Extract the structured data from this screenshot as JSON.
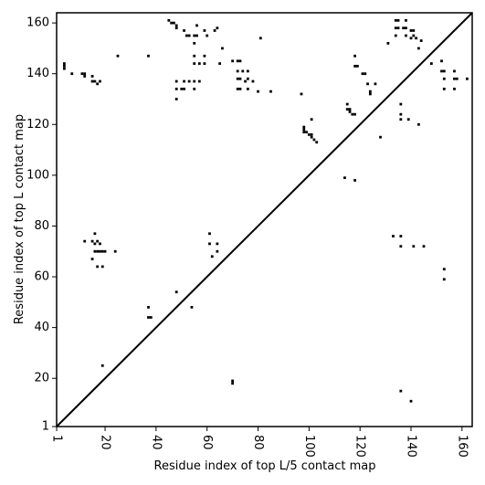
{
  "chart_data": {
    "type": "scatter",
    "title": "",
    "xlabel": "Residue index of top L/5 contact map",
    "ylabel": "Residue index of top L contact map",
    "xlim": [
      1,
      164
    ],
    "ylim": [
      1,
      164
    ],
    "x_ticks": [
      1,
      20,
      40,
      60,
      80,
      100,
      120,
      140,
      160
    ],
    "y_ticks": [
      1,
      20,
      40,
      60,
      80,
      100,
      120,
      140,
      160
    ],
    "x_tick_labels": [
      "1",
      "20",
      "40",
      "60",
      "80",
      "100",
      "120",
      "140",
      "160"
    ],
    "y_tick_labels": [
      "1",
      "20",
      "40",
      "60",
      "80",
      "100",
      "120",
      "140",
      "160"
    ],
    "grid": false,
    "legend": "none",
    "colors": {
      "marker": "#000000",
      "diagonal": "#000000",
      "frame": "#000000",
      "background": "#ffffff"
    },
    "diagonal": [
      [
        1,
        1
      ],
      [
        164,
        164
      ]
    ],
    "series": [
      {
        "values": [
          [
            4,
            142
          ],
          [
            4,
            143
          ],
          [
            4,
            144
          ],
          [
            7,
            140
          ],
          [
            11,
            140
          ],
          [
            12,
            140
          ],
          [
            12,
            139
          ],
          [
            15,
            139
          ],
          [
            15,
            137
          ],
          [
            16,
            137
          ],
          [
            17,
            136
          ],
          [
            18,
            137
          ],
          [
            25,
            147
          ],
          [
            37,
            147
          ],
          [
            45,
            161
          ],
          [
            46,
            160
          ],
          [
            47,
            160
          ],
          [
            48,
            159
          ],
          [
            48,
            158
          ],
          [
            51,
            157
          ],
          [
            52,
            155
          ],
          [
            53,
            155
          ],
          [
            55,
            155
          ],
          [
            56,
            155
          ],
          [
            56,
            159
          ],
          [
            59,
            157
          ],
          [
            60,
            155
          ],
          [
            63,
            157
          ],
          [
            64,
            158
          ],
          [
            55,
            152
          ],
          [
            55,
            147
          ],
          [
            55,
            144
          ],
          [
            57,
            144
          ],
          [
            59,
            144
          ],
          [
            59,
            147
          ],
          [
            65,
            144
          ],
          [
            66,
            150
          ],
          [
            70,
            145
          ],
          [
            72,
            145
          ],
          [
            73,
            145
          ],
          [
            72,
            141
          ],
          [
            74,
            141
          ],
          [
            72,
            138
          ],
          [
            73,
            138
          ],
          [
            75,
            137
          ],
          [
            76,
            138
          ],
          [
            76,
            141
          ],
          [
            72,
            134
          ],
          [
            73,
            134
          ],
          [
            76,
            134
          ],
          [
            78,
            137
          ],
          [
            80,
            133
          ],
          [
            85,
            133
          ],
          [
            48,
            130
          ],
          [
            48,
            134
          ],
          [
            48,
            137
          ],
          [
            50,
            134
          ],
          [
            51,
            134
          ],
          [
            51,
            137
          ],
          [
            53,
            137
          ],
          [
            55,
            137
          ],
          [
            55,
            134
          ],
          [
            57,
            137
          ],
          [
            81,
            154
          ],
          [
            97,
            132
          ],
          [
            98,
            119
          ],
          [
            98,
            118
          ],
          [
            98,
            117
          ],
          [
            99,
            117
          ],
          [
            100,
            116
          ],
          [
            101,
            116
          ],
          [
            101,
            115
          ],
          [
            102,
            114
          ],
          [
            103,
            113
          ],
          [
            101,
            122
          ],
          [
            115,
            128
          ],
          [
            115,
            126
          ],
          [
            116,
            126
          ],
          [
            116,
            125
          ],
          [
            117,
            124
          ],
          [
            118,
            124
          ],
          [
            118,
            147
          ],
          [
            118,
            143
          ],
          [
            119,
            143
          ],
          [
            121,
            140
          ],
          [
            122,
            140
          ],
          [
            123,
            136
          ],
          [
            124,
            133
          ],
          [
            124,
            132
          ],
          [
            126,
            136
          ],
          [
            128,
            115
          ],
          [
            131,
            152
          ],
          [
            134,
            161
          ],
          [
            134,
            158
          ],
          [
            135,
            161
          ],
          [
            135,
            158
          ],
          [
            137,
            158
          ],
          [
            138,
            161
          ],
          [
            138,
            158
          ],
          [
            134,
            155
          ],
          [
            138,
            155
          ],
          [
            140,
            157
          ],
          [
            141,
            157
          ],
          [
            141,
            155
          ],
          [
            140,
            154
          ],
          [
            142,
            154
          ],
          [
            144,
            153
          ],
          [
            143,
            150
          ],
          [
            148,
            144
          ],
          [
            136,
            128
          ],
          [
            136,
            124
          ],
          [
            136,
            122
          ],
          [
            139,
            122
          ],
          [
            143,
            120
          ],
          [
            152,
            141
          ],
          [
            152,
            145
          ],
          [
            153,
            141
          ],
          [
            153,
            138
          ],
          [
            153,
            134
          ],
          [
            157,
            141
          ],
          [
            157,
            138
          ],
          [
            157,
            134
          ],
          [
            158,
            138
          ],
          [
            162,
            138
          ],
          [
            114,
            99
          ],
          [
            118,
            98
          ],
          [
            12,
            74
          ],
          [
            15,
            74
          ],
          [
            16,
            77
          ],
          [
            16,
            73
          ],
          [
            17,
            74
          ],
          [
            18,
            73
          ],
          [
            15,
            67
          ],
          [
            16,
            70
          ],
          [
            17,
            70
          ],
          [
            18,
            70
          ],
          [
            19,
            70
          ],
          [
            20,
            70
          ],
          [
            24,
            70
          ],
          [
            17,
            64
          ],
          [
            19,
            64
          ],
          [
            61,
            77
          ],
          [
            61,
            73
          ],
          [
            64,
            73
          ],
          [
            62,
            68
          ],
          [
            64,
            70
          ],
          [
            37,
            48
          ],
          [
            37,
            44
          ],
          [
            38,
            44
          ],
          [
            48,
            54
          ],
          [
            54,
            48
          ],
          [
            133,
            76
          ],
          [
            136,
            76
          ],
          [
            136,
            72
          ],
          [
            141,
            72
          ],
          [
            145,
            72
          ],
          [
            153,
            63
          ],
          [
            153,
            59
          ],
          [
            19,
            25
          ],
          [
            70,
            19
          ],
          [
            70,
            18
          ],
          [
            136,
            15
          ],
          [
            140,
            11
          ]
        ]
      }
    ]
  }
}
